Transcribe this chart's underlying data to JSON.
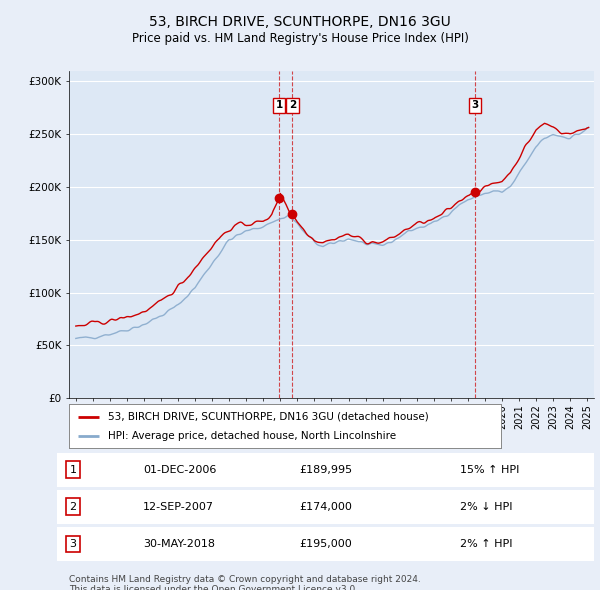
{
  "title": "53, BIRCH DRIVE, SCUNTHORPE, DN16 3GU",
  "subtitle": "Price paid vs. HM Land Registry's House Price Index (HPI)",
  "legend_line1": "53, BIRCH DRIVE, SCUNTHORPE, DN16 3GU (detached house)",
  "legend_line2": "HPI: Average price, detached house, North Lincolnshire",
  "footer1": "Contains HM Land Registry data © Crown copyright and database right 2024.",
  "footer2": "This data is licensed under the Open Government Licence v3.0.",
  "transactions": [
    {
      "num": 1,
      "date": "01-DEC-2006",
      "price": "£189,995",
      "hpi": "15% ↑ HPI",
      "year": 2006.92,
      "price_val": 189995
    },
    {
      "num": 2,
      "date": "12-SEP-2007",
      "price": "£174,000",
      "hpi": "2% ↓ HPI",
      "year": 2007.7,
      "price_val": 174000
    },
    {
      "num": 3,
      "date": "30-MAY-2018",
      "price": "£195,000",
      "hpi": "2% ↑ HPI",
      "year": 2018.41,
      "price_val": 195000
    }
  ],
  "red_color": "#cc0000",
  "blue_color": "#88aacc",
  "vline_color": "#cc0000",
  "bg_color": "#e8eef8",
  "plot_bg": "#dde8f5",
  "grid_color": "#ffffff",
  "yticks": [
    0,
    50000,
    100000,
    150000,
    200000,
    250000,
    300000
  ],
  "ylabels": [
    "£0",
    "£50K",
    "£100K",
    "£150K",
    "£200K",
    "£250K",
    "£300K"
  ],
  "xticks": [
    1995,
    1996,
    1997,
    1998,
    1999,
    2000,
    2001,
    2002,
    2003,
    2004,
    2005,
    2006,
    2007,
    2008,
    2009,
    2010,
    2011,
    2012,
    2013,
    2014,
    2015,
    2016,
    2017,
    2018,
    2019,
    2020,
    2021,
    2022,
    2023,
    2024,
    2025
  ],
  "ylim": [
    0,
    310000
  ],
  "xlim": [
    1994.6,
    2025.4
  ]
}
